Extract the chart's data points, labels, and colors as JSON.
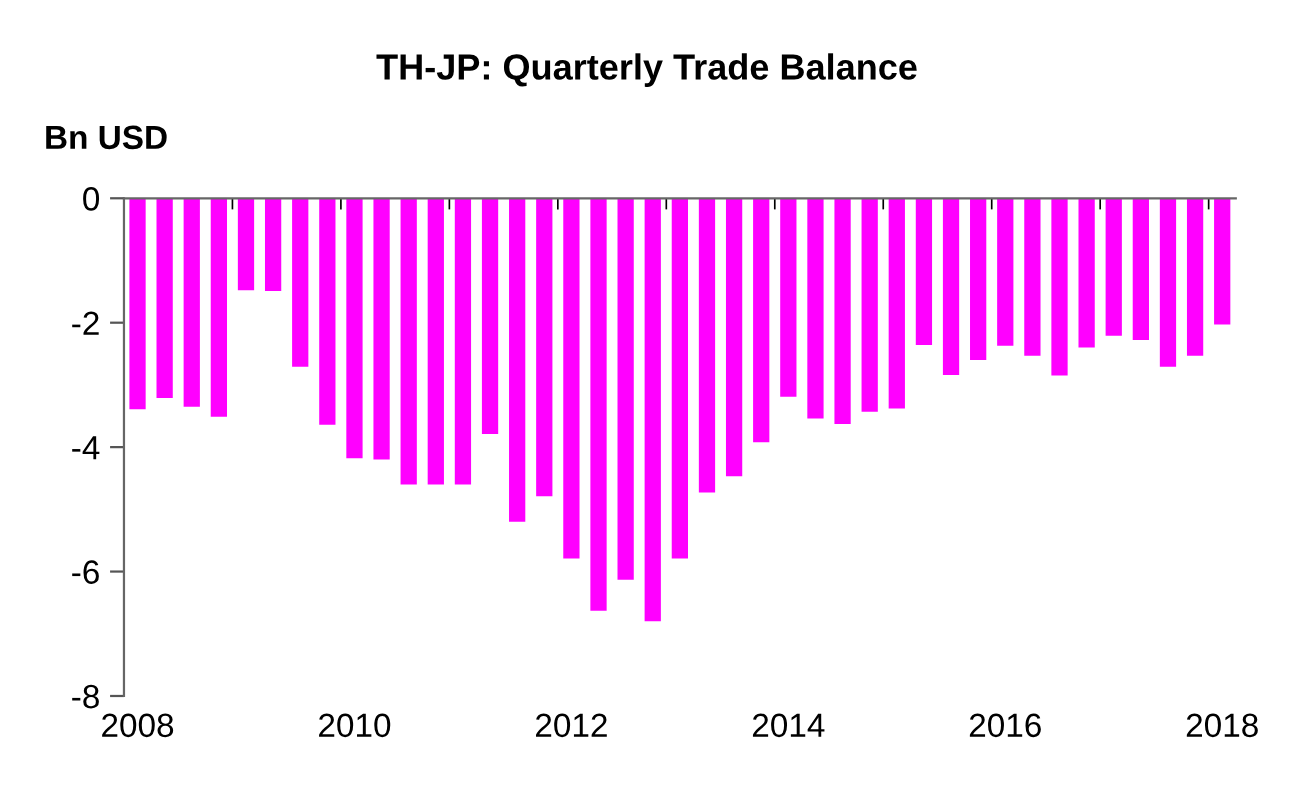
{
  "chart_data": {
    "type": "bar",
    "title": "TH-JP: Quarterly Trade Balance",
    "ylabel": "Bn USD",
    "categories": [
      "2008",
      null,
      null,
      null,
      null,
      null,
      null,
      null,
      "2010",
      null,
      null,
      null,
      null,
      null,
      null,
      null,
      "2012",
      null,
      null,
      null,
      null,
      null,
      null,
      null,
      "2014",
      null,
      null,
      null,
      null,
      null,
      null,
      null,
      "2016",
      null,
      null,
      null,
      null,
      null,
      null,
      null,
      "2018"
    ],
    "values": [
      -3.39,
      -3.21,
      -3.35,
      -3.51,
      -1.48,
      -1.49,
      -2.71,
      -3.64,
      -4.18,
      -4.2,
      -4.6,
      -4.6,
      -4.6,
      -3.79,
      -5.2,
      -4.79,
      -5.79,
      -6.63,
      -6.13,
      -6.8,
      -5.79,
      -4.73,
      -4.47,
      -3.92,
      -3.19,
      -3.54,
      -3.63,
      -3.43,
      -3.38,
      -2.36,
      -2.84,
      -2.6,
      -2.37,
      -2.53,
      -2.85,
      -2.4,
      -2.21,
      -2.28,
      -2.71,
      -2.53,
      -2.03
    ],
    "color": "#ff00ff",
    "ylim": [
      -8,
      0
    ],
    "yticks": [
      -8,
      -6,
      -4,
      -2,
      0
    ],
    "grid": false,
    "legend": false
  }
}
